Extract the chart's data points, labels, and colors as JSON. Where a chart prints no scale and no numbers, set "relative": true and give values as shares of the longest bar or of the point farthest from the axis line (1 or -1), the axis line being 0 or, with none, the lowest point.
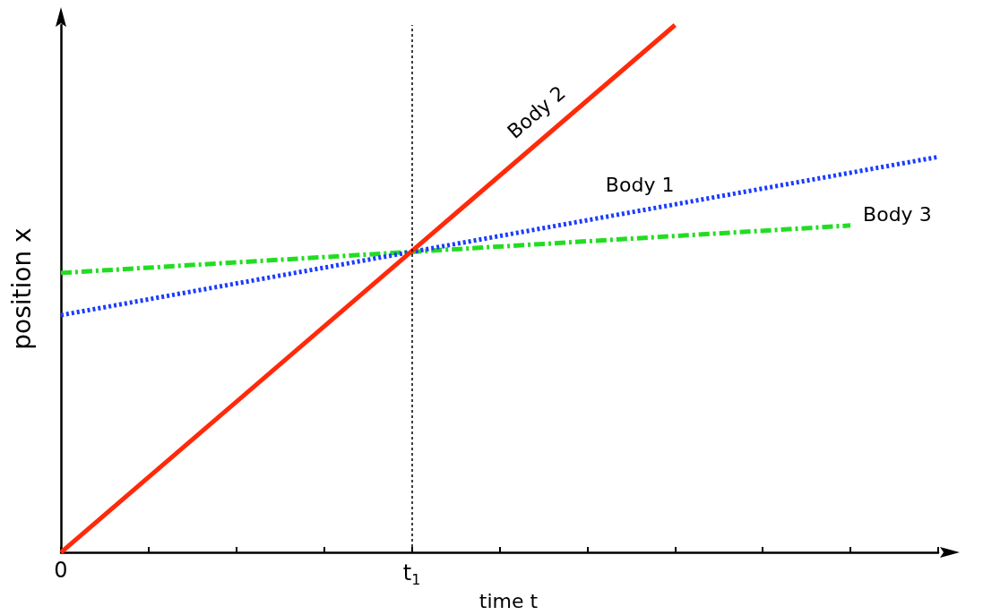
{
  "chart_data": {
    "type": "line",
    "relative": true,
    "xlabel": "time t",
    "ylabel": "position x",
    "categories": [
      "0",
      null,
      null,
      null,
      "t$_{1}$",
      null,
      null,
      null,
      null,
      null,
      null
    ],
    "series": [
      {
        "name": "Body 2",
        "color": "#ff2a0a",
        "line_style": "solid",
        "values": [
          0,
          null,
          null,
          null,
          null,
          null,
          null,
          1,
          null,
          null,
          null
        ]
      },
      {
        "name": "Body 1",
        "color": "#1a3cff",
        "line_style": "dotted",
        "values": [
          0.45,
          null,
          null,
          null,
          null,
          null,
          null,
          null,
          null,
          null,
          0.75
        ]
      },
      {
        "name": "Body 3",
        "color": "#22dd22",
        "line_style": "dashed",
        "values": [
          0.53,
          null,
          null,
          null,
          null,
          null,
          null,
          null,
          null,
          0.62,
          null
        ]
      }
    ],
    "ref_lines": [
      {
        "axis": "x",
        "value": "t$_{1}$",
        "color": "#000000",
        "line_style": "dotted"
      }
    ],
    "grid": false,
    "legend": false,
    "marker": "none"
  }
}
